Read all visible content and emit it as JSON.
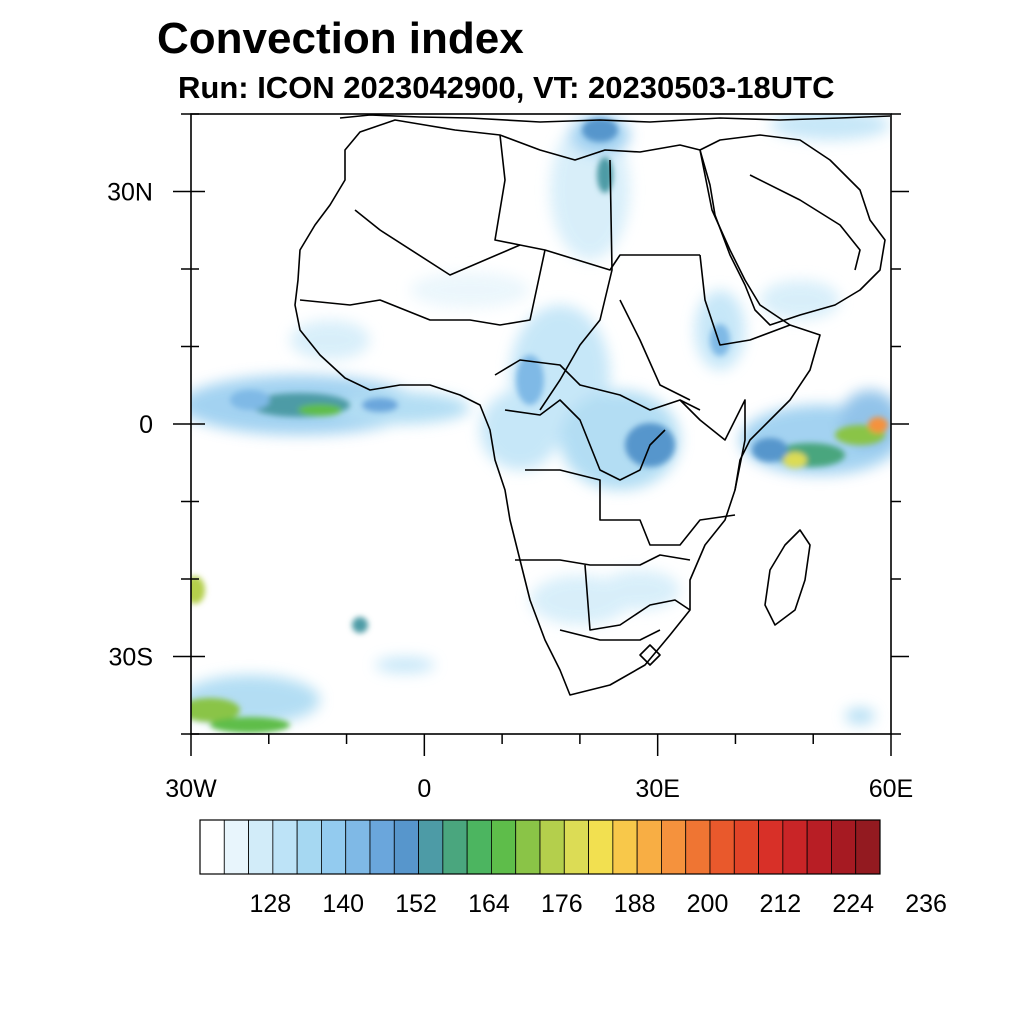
{
  "title": "Convection index",
  "subtitle": "Run: ICON 2023042900,  VT: 20230503-18UTC",
  "axes": {
    "x_ticks": [
      {
        "lon": -30,
        "label": "30W"
      },
      {
        "lon": 0,
        "label": "0"
      },
      {
        "lon": 30,
        "label": "30E"
      },
      {
        "lon": 60,
        "label": "60E"
      }
    ],
    "y_ticks": [
      {
        "lat": 30,
        "label": "30N"
      },
      {
        "lat": 0,
        "label": "0"
      },
      {
        "lat": -30,
        "label": "30S"
      }
    ],
    "lon_range": [
      -30,
      60
    ],
    "lat_range": [
      -40,
      40
    ]
  },
  "colorbar": {
    "labels": [
      "128",
      "140",
      "152",
      "164",
      "176",
      "188",
      "200",
      "212",
      "224",
      "236"
    ],
    "colors": [
      "#ffffff",
      "#e8f5fc",
      "#d2ecf9",
      "#bde3f7",
      "#a6d8f2",
      "#93cbef",
      "#7fb9e6",
      "#6aa6dc",
      "#5796cc",
      "#4d9ba6",
      "#4aa67e",
      "#4cb560",
      "#5ebd4a",
      "#8ac447",
      "#b4cf4c",
      "#dcdc55",
      "#f2e050",
      "#f8c84a",
      "#f8ae44",
      "#f5923d",
      "#ef7533",
      "#e9592c",
      "#e14428",
      "#d83028",
      "#c92527",
      "#b81e25",
      "#a61a22",
      "#931a20"
    ]
  },
  "convection_cells": [
    {
      "lon": -14,
      "lat": 2.5,
      "level": 9
    },
    {
      "lon": -8,
      "lat": 2,
      "level": 11
    },
    {
      "lon": -20,
      "lat": 3,
      "level": 6
    },
    {
      "lon": -3,
      "lat": 2,
      "level": 7
    },
    {
      "lon": 48,
      "lat": -3,
      "level": 15
    },
    {
      "lon": 54,
      "lat": -1,
      "level": 17
    },
    {
      "lon": 58,
      "lat": 0,
      "level": 20
    },
    {
      "lon": 43,
      "lat": -4,
      "level": 10
    },
    {
      "lon": 29,
      "lat": -2,
      "level": 9
    },
    {
      "lon": 23,
      "lat": -2,
      "level": 6
    },
    {
      "lon": 12,
      "lat": 2,
      "level": 6
    },
    {
      "lon": 26,
      "lat": 24,
      "level": 5
    },
    {
      "lon": 38,
      "lat": 12,
      "level": 5
    },
    {
      "lon": 22,
      "lat": 14,
      "level": 5
    },
    {
      "lon": -29,
      "lat": -22,
      "level": 14
    },
    {
      "lon": -24,
      "lat": -38,
      "level": 12
    },
    {
      "lon": 20,
      "lat": -24,
      "level": 4
    }
  ]
}
